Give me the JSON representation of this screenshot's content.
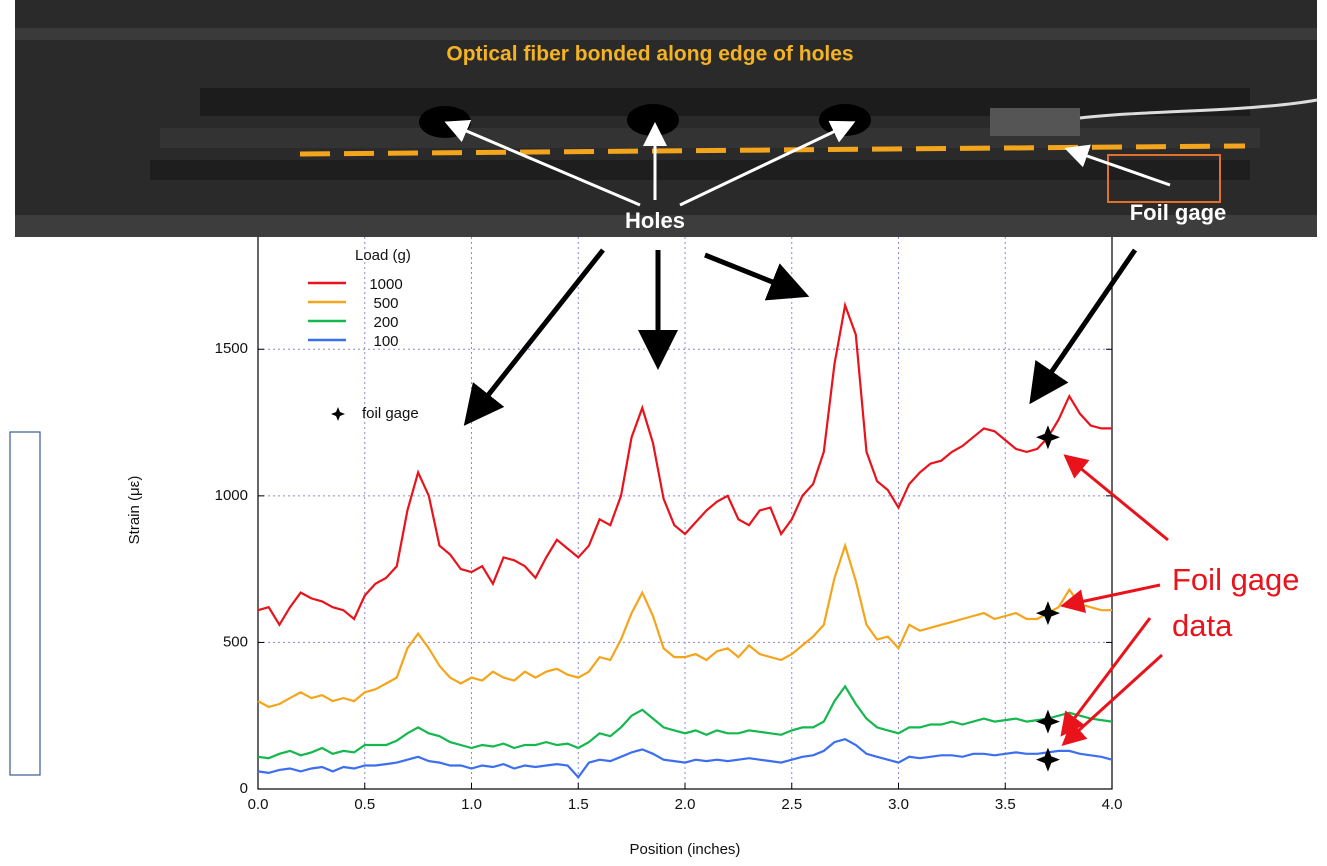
{
  "chart_data": {
    "type": "line",
    "x_label": "Position (inches)",
    "y_label": "Strain (με)",
    "legend_title": "Load (g)",
    "xlim": [
      0,
      4
    ],
    "ylim": [
      0,
      1900
    ],
    "xticks": [
      {
        "value": 0,
        "label": "0.0"
      },
      {
        "value": 0.5,
        "label": "0.5"
      },
      {
        "value": 1,
        "label": "1.0"
      },
      {
        "value": 1.5,
        "label": "1.5"
      },
      {
        "value": 2,
        "label": "2.0"
      },
      {
        "value": 2.5,
        "label": "2.5"
      },
      {
        "value": 3,
        "label": "3.0"
      },
      {
        "value": 3.5,
        "label": "3.5"
      },
      {
        "value": 4,
        "label": "4.0"
      }
    ],
    "yticks": [
      0,
      500,
      1000,
      1500
    ],
    "grid": true,
    "x": [
      0,
      0.05,
      0.1,
      0.15,
      0.2,
      0.25,
      0.3,
      0.35,
      0.4,
      0.45,
      0.5,
      0.55,
      0.6,
      0.65,
      0.7,
      0.75,
      0.8,
      0.85,
      0.9,
      0.95,
      1,
      1.05,
      1.1,
      1.15,
      1.2,
      1.25,
      1.3,
      1.35,
      1.4,
      1.45,
      1.5,
      1.55,
      1.6,
      1.65,
      1.7,
      1.75,
      1.8,
      1.85,
      1.9,
      1.95,
      2,
      2.05,
      2.1,
      2.15,
      2.2,
      2.25,
      2.3,
      2.35,
      2.4,
      2.45,
      2.5,
      2.55,
      2.6,
      2.65,
      2.7,
      2.75,
      2.8,
      2.85,
      2.9,
      2.95,
      3,
      3.05,
      3.1,
      3.15,
      3.2,
      3.25,
      3.3,
      3.35,
      3.4,
      3.45,
      3.5,
      3.55,
      3.6,
      3.65,
      3.7,
      3.75,
      3.8,
      3.85,
      3.9,
      3.95,
      4
    ],
    "series": [
      {
        "name": "1000",
        "color": "#e8131b",
        "values": [
          610,
          620,
          560,
          620,
          670,
          650,
          640,
          620,
          610,
          580,
          660,
          700,
          720,
          760,
          950,
          1080,
          1000,
          830,
          800,
          750,
          740,
          760,
          700,
          790,
          780,
          760,
          720,
          790,
          850,
          820,
          790,
          830,
          920,
          900,
          1000,
          1200,
          1300,
          1180,
          990,
          900,
          870,
          910,
          950,
          980,
          1000,
          920,
          900,
          950,
          960,
          870,
          920,
          1000,
          1040,
          1150,
          1450,
          1650,
          1550,
          1150,
          1050,
          1020,
          960,
          1040,
          1080,
          1110,
          1120,
          1150,
          1170,
          1200,
          1230,
          1220,
          1190,
          1160,
          1150,
          1160,
          1200,
          1260,
          1340,
          1280,
          1240,
          1230,
          1230
        ]
      },
      {
        "name": "500",
        "color": "#f4a51c",
        "values": [
          300,
          280,
          290,
          310,
          330,
          310,
          320,
          300,
          310,
          300,
          330,
          340,
          360,
          380,
          480,
          530,
          480,
          420,
          380,
          360,
          380,
          370,
          400,
          380,
          370,
          400,
          380,
          400,
          410,
          390,
          380,
          400,
          450,
          440,
          510,
          600,
          670,
          590,
          480,
          450,
          450,
          460,
          440,
          470,
          480,
          450,
          490,
          460,
          450,
          440,
          460,
          490,
          520,
          560,
          720,
          830,
          710,
          560,
          510,
          520,
          480,
          560,
          540,
          550,
          560,
          570,
          580,
          590,
          600,
          580,
          590,
          600,
          580,
          580,
          600,
          620,
          680,
          630,
          620,
          610,
          610
        ]
      },
      {
        "name": "200",
        "color": "#14b84e",
        "values": [
          110,
          105,
          120,
          130,
          115,
          125,
          140,
          120,
          130,
          125,
          150,
          150,
          150,
          165,
          190,
          210,
          190,
          180,
          160,
          150,
          140,
          150,
          145,
          155,
          140,
          150,
          150,
          160,
          150,
          155,
          140,
          160,
          190,
          180,
          210,
          250,
          270,
          240,
          210,
          200,
          190,
          200,
          185,
          200,
          190,
          190,
          200,
          195,
          190,
          185,
          200,
          210,
          210,
          230,
          300,
          350,
          290,
          240,
          210,
          200,
          190,
          210,
          210,
          220,
          220,
          230,
          220,
          230,
          240,
          230,
          235,
          240,
          230,
          235,
          240,
          250,
          260,
          250,
          240,
          235,
          230
        ]
      },
      {
        "name": "100",
        "color": "#3b6ef0",
        "values": [
          60,
          55,
          65,
          70,
          60,
          70,
          75,
          60,
          75,
          70,
          80,
          80,
          85,
          90,
          100,
          110,
          95,
          90,
          80,
          80,
          70,
          80,
          75,
          85,
          70,
          80,
          75,
          80,
          85,
          80,
          40,
          90,
          100,
          95,
          110,
          125,
          135,
          120,
          100,
          95,
          90,
          100,
          95,
          100,
          95,
          100,
          105,
          100,
          95,
          90,
          100,
          110,
          115,
          130,
          160,
          170,
          150,
          120,
          110,
          100,
          90,
          110,
          105,
          110,
          115,
          115,
          110,
          120,
          120,
          115,
          120,
          125,
          120,
          120,
          125,
          130,
          130,
          120,
          115,
          110,
          100
        ]
      }
    ],
    "foil_gage": {
      "name": "foil gage",
      "color": "#000000",
      "x": [
        3.7,
        3.7,
        3.7,
        3.7
      ],
      "values": [
        1200,
        600,
        230,
        100
      ]
    },
    "annotations": [
      "Optical fiber bonded along edge of holes",
      "Holes",
      "Foil gage",
      [
        "Foil gage",
        "data"
      ]
    ]
  }
}
